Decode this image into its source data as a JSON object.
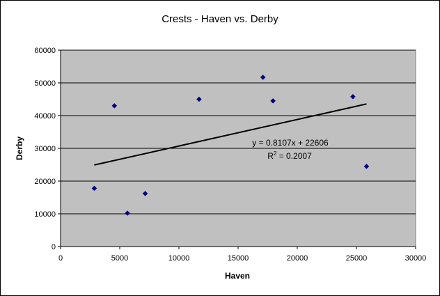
{
  "chart_data": {
    "type": "scatter",
    "title": "Crests - Haven vs. Derby",
    "xlabel": "Haven",
    "ylabel": "Derby",
    "xlim": [
      0,
      30000
    ],
    "ylim": [
      0,
      60000
    ],
    "xticks": [
      0,
      5000,
      10000,
      15000,
      20000,
      25000,
      30000
    ],
    "yticks": [
      0,
      10000,
      20000,
      30000,
      40000,
      50000,
      60000
    ],
    "grid": "horizontal",
    "legend": "none",
    "series": [
      {
        "points": [
          {
            "x": 2850,
            "y": 17800
          },
          {
            "x": 4550,
            "y": 43000
          },
          {
            "x": 5650,
            "y": 10200
          },
          {
            "x": 7150,
            "y": 16200
          },
          {
            "x": 11700,
            "y": 45000
          },
          {
            "x": 17100,
            "y": 51700
          },
          {
            "x": 17950,
            "y": 44500
          },
          {
            "x": 24700,
            "y": 45800
          },
          {
            "x": 25850,
            "y": 24500
          }
        ]
      }
    ],
    "trendline": {
      "type": "linear",
      "slope": 0.8107,
      "intercept": 22606,
      "x_range": [
        2850,
        25850
      ],
      "equation_label": "y = 0.8107x + 22606",
      "r2_prefix": "R",
      "r2_sup": "2",
      "r2_value": " = 0.2007"
    },
    "colors": {
      "plot_background": "#c0c0c0",
      "marker": "#000080",
      "trendline": "#000000",
      "gridline": "#000000"
    }
  }
}
